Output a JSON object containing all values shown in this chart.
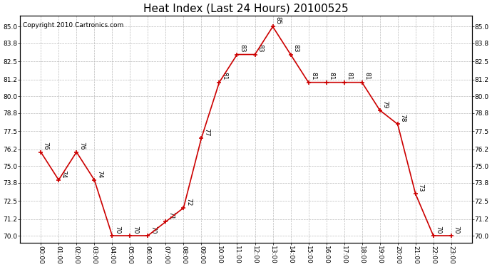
{
  "title": "Heat Index (Last 24 Hours) 20100525",
  "copyright": "Copyright 2010 Cartronics.com",
  "hours": [
    "00:00",
    "01:00",
    "02:00",
    "03:00",
    "04:00",
    "05:00",
    "06:00",
    "07:00",
    "08:00",
    "09:00",
    "10:00",
    "11:00",
    "12:00",
    "13:00",
    "14:00",
    "15:00",
    "16:00",
    "17:00",
    "18:00",
    "19:00",
    "20:00",
    "21:00",
    "22:00",
    "23:00"
  ],
  "values": [
    76,
    74,
    76,
    74,
    70,
    70,
    70,
    71,
    72,
    77,
    81,
    83,
    83,
    85,
    83,
    81,
    81,
    81,
    81,
    79,
    78,
    73,
    70,
    70
  ],
  "ylim_min": 69.5,
  "ylim_max": 85.8,
  "yticks": [
    70.0,
    71.2,
    72.5,
    73.8,
    75.0,
    76.2,
    77.5,
    78.8,
    80.0,
    81.2,
    82.5,
    83.8,
    85.0
  ],
  "line_color": "#cc0000",
  "marker_color": "#cc0000",
  "bg_color": "#ffffff",
  "grid_color": "#bbbbbb",
  "title_fontsize": 11,
  "label_fontsize": 6.5,
  "annotation_fontsize": 6.5,
  "copyright_fontsize": 6.5
}
